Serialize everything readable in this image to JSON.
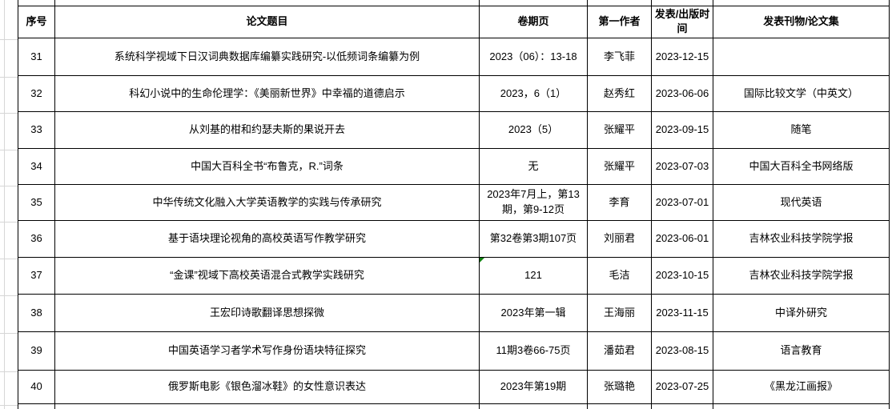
{
  "table": {
    "columns": [
      "序号",
      "论文题目",
      "卷期页",
      "第一作者",
      "发表/出版时间",
      "发表刊物/论文集"
    ],
    "rows": [
      {
        "no": "31",
        "title": "系统科学视域下日汉词典数据库编纂实践研究-以低频词条编纂为例",
        "volume": "2023（06）：13-18",
        "author": "李飞菲",
        "date": "2023-12-15",
        "journal": ""
      },
      {
        "no": "32",
        "title": "科幻小说中的生命伦理学：《美丽新世界》中幸福的道德启示",
        "volume": "2023，6（1）",
        "author": "赵秀红",
        "date": "2023-06-06",
        "journal": "国际比较文学（中英文）"
      },
      {
        "no": "33",
        "title": "从刘基的柑和约瑟夫斯的果说开去",
        "volume": "2023（5）",
        "author": "张耀平",
        "date": "2023-09-15",
        "journal": "随笔"
      },
      {
        "no": "34",
        "title": "中国大百科全书“布鲁克，R.”词条",
        "volume": "无",
        "author": "张耀平",
        "date": "2023-07-03",
        "journal": "中国大百科全书网络版"
      },
      {
        "no": "35",
        "title": "中华传统文化融入大学英语教学的实践与传承研究",
        "volume": "2023年7月上，第13期，第9-12页",
        "author": "李育",
        "date": "2023-07-01",
        "journal": "现代英语"
      },
      {
        "no": "36",
        "title": "基于语块理论视角的高校英语写作教学研究",
        "volume": "第32卷第3期107页",
        "author": "刘丽君",
        "date": "2023-06-01",
        "journal": "吉林农业科技学院学报"
      },
      {
        "no": "37",
        "title": "“金课”视域下高校英语混合式教学实践研究",
        "volume": "121",
        "author": "毛洁",
        "date": "2023-10-15",
        "journal": "吉林农业科技学院学报",
        "has_error_indicator": true
      },
      {
        "no": "38",
        "title": "王宏印诗歌翻译思想探微",
        "volume": "2023年第一辑",
        "author": "王海丽",
        "date": "2023-11-15",
        "journal": "中译外研究"
      },
      {
        "no": "39",
        "title": "中国英语学习者学术写作身份语块特征探究",
        "volume": "11期3卷66-75页",
        "author": "潘茹君",
        "date": "2023-08-15",
        "journal": "语言教育"
      },
      {
        "no": "40",
        "title": "俄罗斯电影《银色溜冰鞋》的女性意识表达",
        "volume": "2023年第19期",
        "author": "张璐艳",
        "date": "2023-07-25",
        "journal": "《黑龙江画报》"
      }
    ]
  },
  "colors": {
    "border": "#000000",
    "margin_gridline": "#d6d6d6",
    "error_indicator_green": "#108010",
    "text": "#000000",
    "background": "#ffffff"
  }
}
